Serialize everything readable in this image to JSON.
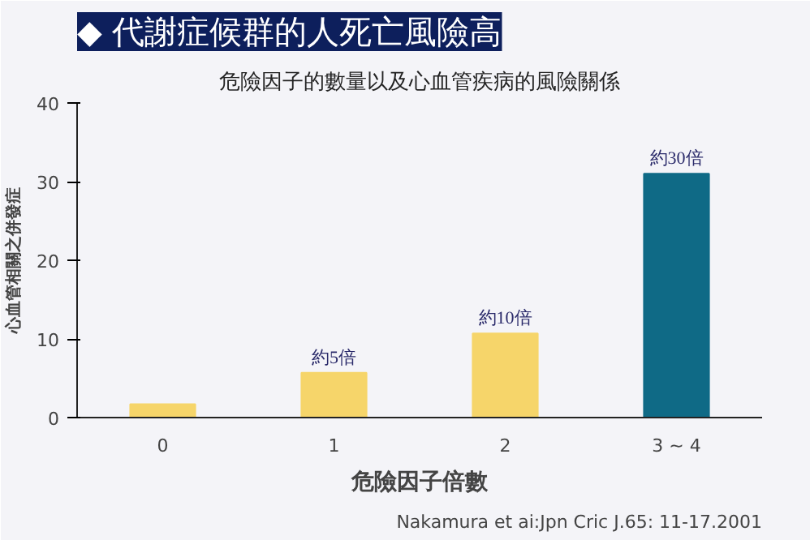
{
  "chart_data": {
    "type": "bar",
    "title": "◆ 代謝症候群的人死亡風險高",
    "subtitle": "危險因子的數量以及心血管疾病的風險關係",
    "xlabel": "危險因子倍數",
    "ylabel": "心血管相關之併發症",
    "categories": [
      "0",
      "1",
      "2",
      "3 ~ 4"
    ],
    "values": [
      1.7,
      5.7,
      10.7,
      31.0
    ],
    "colors": [
      "#f6d56a",
      "#f6d56a",
      "#f6d56a",
      "#0f6a86"
    ],
    "value_labels": [
      null,
      "約5倍",
      "約10倍",
      "約30倍"
    ],
    "ylim": [
      0,
      40
    ],
    "yticks": [
      0,
      10,
      20,
      30,
      40
    ],
    "grid": false,
    "annotations": [
      "Nakamura et ai:Jpn Cric J.65: 11-17.2001"
    ]
  }
}
